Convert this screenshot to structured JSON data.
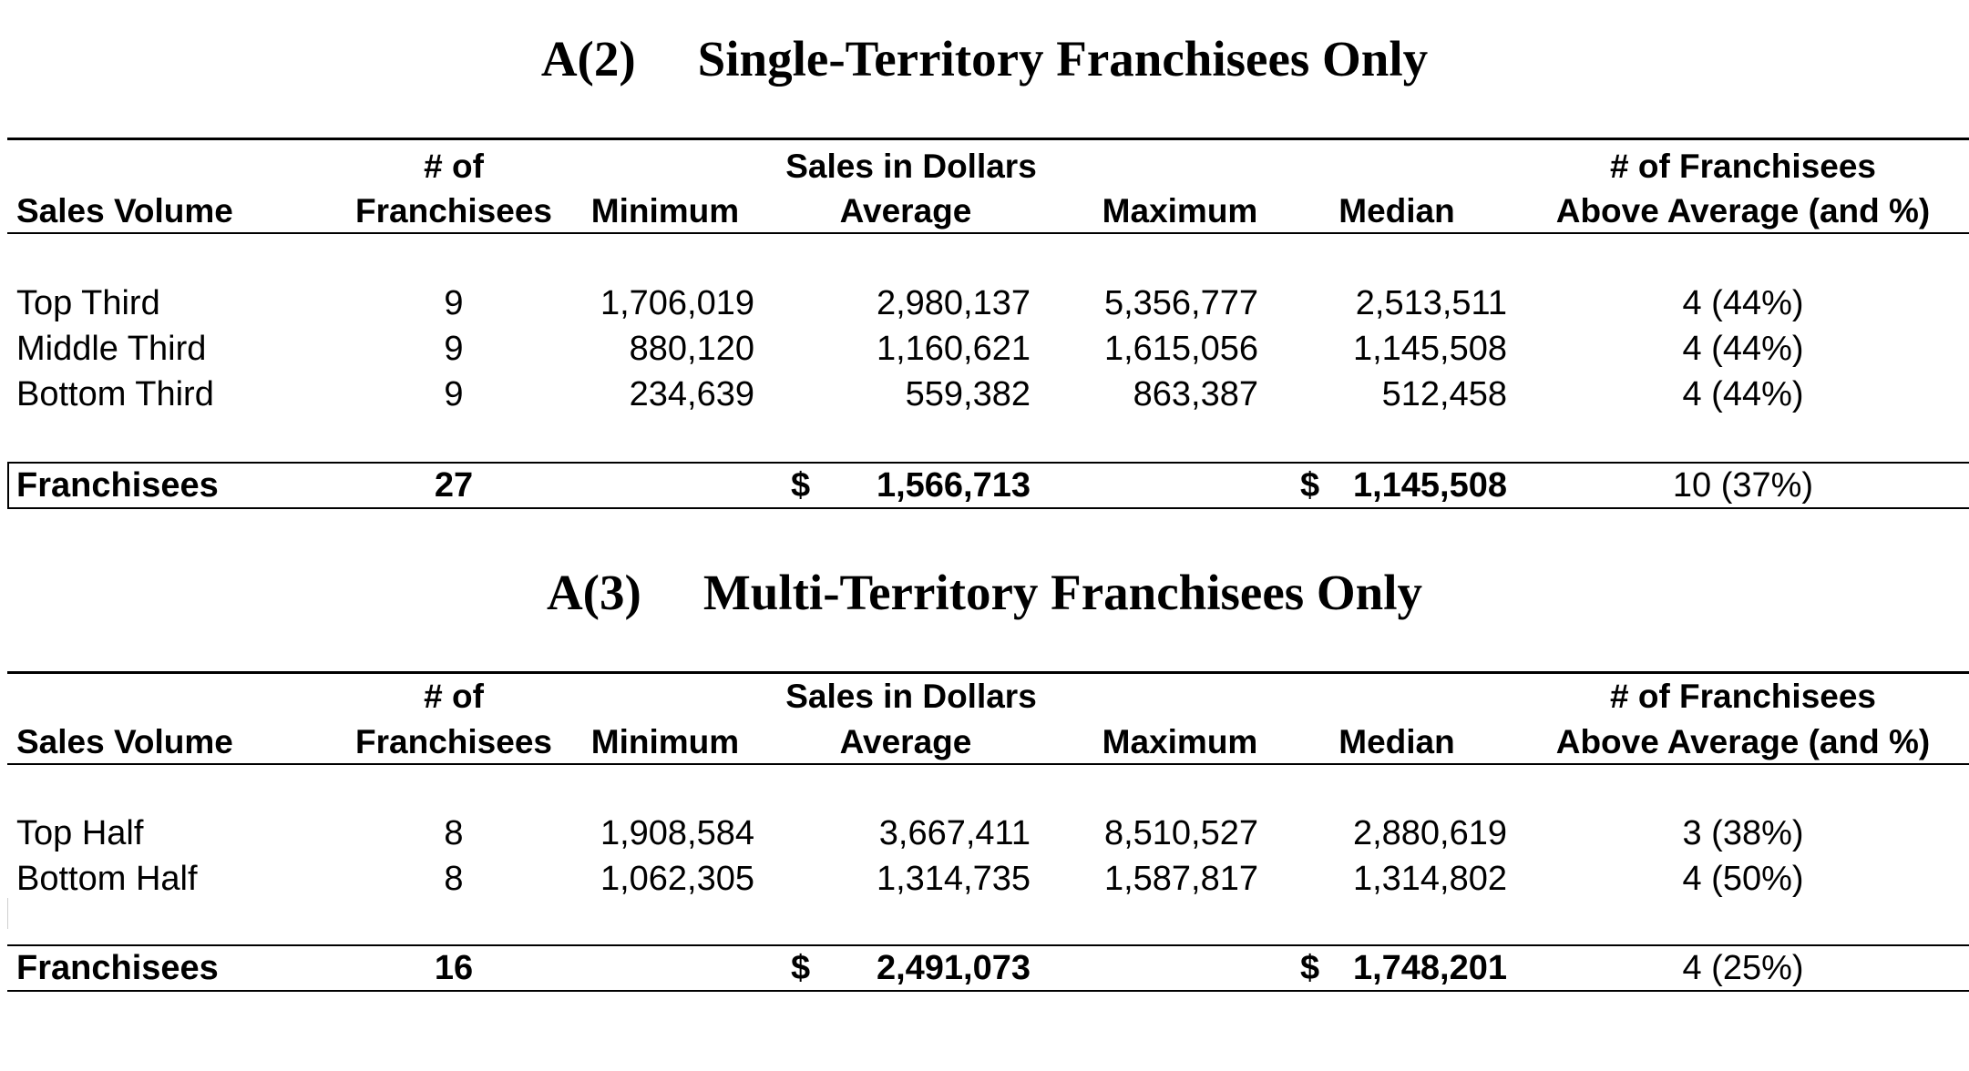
{
  "tables": [
    {
      "code": "A(2)",
      "title": "Single-Territory Franchisees Only",
      "headers": {
        "sales_volume": "Sales Volume",
        "num_line1": "# of",
        "num_line2": "Franchisees",
        "sales_group": "Sales in Dollars",
        "minimum": "Minimum",
        "average": "Average",
        "maximum": "Maximum",
        "median": "Median",
        "above_line1": "# of Franchisees",
        "above_line2": "Above Average (and %)"
      },
      "rows": [
        {
          "label": "Top Third",
          "count": "9",
          "min": "1,706,019",
          "avg": "2,980,137",
          "max": "5,356,777",
          "median": "2,513,511",
          "above": "4 (44%)"
        },
        {
          "label": "Middle Third",
          "count": "9",
          "min": "880,120",
          "avg": "1,160,621",
          "max": "1,615,056",
          "median": "1,145,508",
          "above": "4 (44%)"
        },
        {
          "label": "Bottom Third",
          "count": "9",
          "min": "234,639",
          "avg": "559,382",
          "max": "863,387",
          "median": "512,458",
          "above": "4 (44%)"
        }
      ],
      "total": {
        "label": "Franchisees",
        "count": "27",
        "avg_currency": "$",
        "avg": "1,566,713",
        "median_currency": "$",
        "median": "1,145,508",
        "above": "10 (37%)"
      }
    },
    {
      "code": "A(3)",
      "title": "Multi-Territory Franchisees Only",
      "headers": {
        "sales_volume": "Sales Volume",
        "num_line1": "# of",
        "num_line2": "Franchisees",
        "sales_group": "Sales in Dollars",
        "minimum": "Minimum",
        "average": "Average",
        "maximum": "Maximum",
        "median": "Median",
        "above_line1": "# of Franchisees",
        "above_line2": "Above Average (and %)"
      },
      "rows": [
        {
          "label": "Top Half",
          "count": "8",
          "min": "1,908,584",
          "avg": "3,667,411",
          "max": "8,510,527",
          "median": "2,880,619",
          "above": "3 (38%)"
        },
        {
          "label": "Bottom Half",
          "count": "8",
          "min": "1,062,305",
          "avg": "1,314,735",
          "max": "1,587,817",
          "median": "1,314,802",
          "above": "4 (50%)"
        }
      ],
      "total": {
        "label": "Franchisees",
        "count": "16",
        "avg_currency": "$",
        "avg": "2,491,073",
        "median_currency": "$",
        "median": "1,748,201",
        "above": "4 (25%)"
      }
    }
  ]
}
